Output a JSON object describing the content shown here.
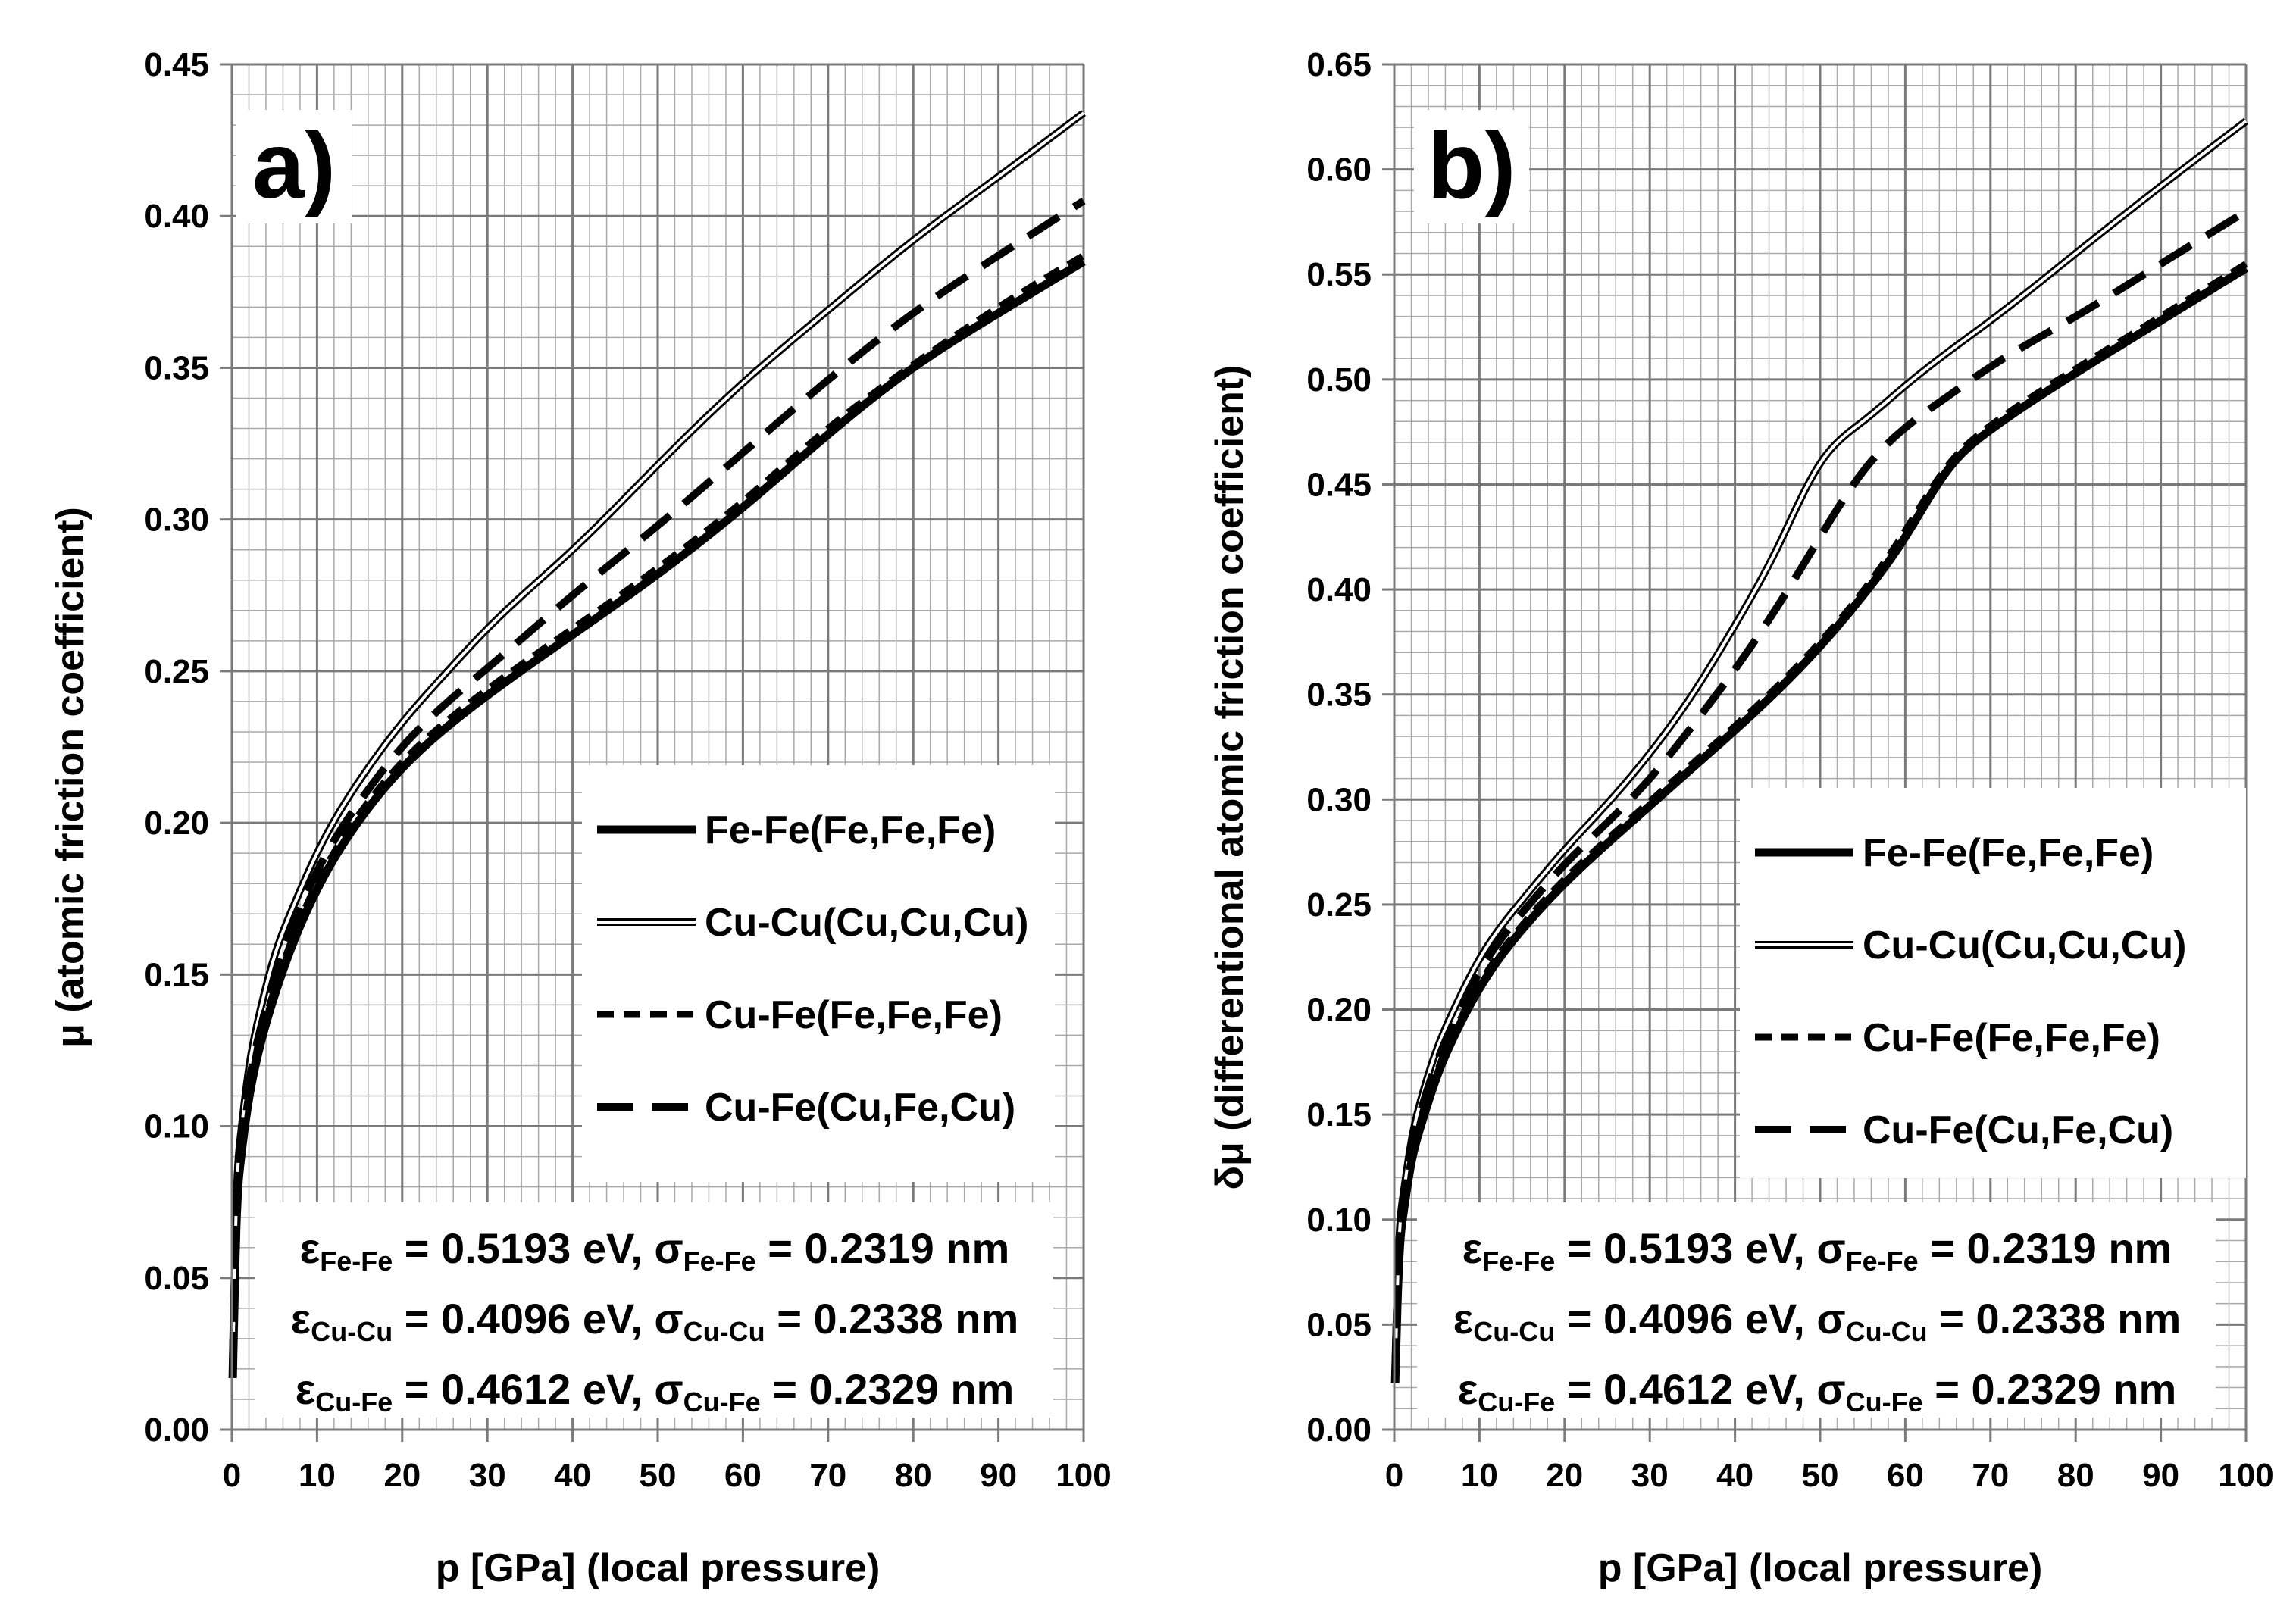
{
  "figure": {
    "params": [
      {
        "eps_sub": "Fe-Fe",
        "eps_val": " = 0.5193 eV, ",
        "sig_sub": "Fe-Fe",
        "sig_val": " = 0.2319 nm"
      },
      {
        "eps_sub": "Cu-Cu",
        "eps_val": " = 0.4096 eV, ",
        "sig_sub": "Cu-Cu",
        "sig_val": " = 0.2338 nm"
      },
      {
        "eps_sub": "Cu-Fe",
        "eps_val": " = 0.4612 eV, ",
        "sig_sub": "Cu-Fe",
        "sig_val": " = 0.2329 nm"
      }
    ],
    "symbols": {
      "epsilon": "ε",
      "sigma": "σ"
    }
  },
  "chart_data": [
    {
      "type": "line",
      "panel_label": "a)",
      "xlabel": "p [GPa]   (local pressure)",
      "ylabel_symbol": "μ",
      "ylabel_text": "(atomic friction coefficient)",
      "xlim": [
        0,
        100
      ],
      "ylim": [
        0,
        0.45
      ],
      "xticks": [
        "0",
        "10",
        "20",
        "30",
        "40",
        "50",
        "60",
        "70",
        "80",
        "90",
        "100"
      ],
      "yticks": [
        "0.00",
        "0.05",
        "0.10",
        "0.15",
        "0.20",
        "0.25",
        "0.30",
        "0.35",
        "0.40",
        "0.45"
      ],
      "grid": true,
      "legend_position": "right",
      "series": [
        {
          "name": "Fe-Fe(Fe,Fe,Fe)",
          "style": "solid-thick",
          "x": [
            0.1,
            0.5,
            1,
            2,
            3,
            5,
            7,
            10,
            15,
            20,
            25,
            30,
            40,
            50,
            60,
            70,
            80,
            90,
            100
          ],
          "y": [
            0.017,
            0.065,
            0.088,
            0.109,
            0.123,
            0.143,
            0.159,
            0.178,
            0.201,
            0.218,
            0.231,
            0.242,
            0.262,
            0.282,
            0.304,
            0.328,
            0.35,
            0.368,
            0.385
          ]
        },
        {
          "name": "Cu-Cu(Cu,Cu,Cu)",
          "style": "double",
          "x": [
            0.1,
            0.5,
            1,
            2,
            3,
            5,
            7,
            10,
            15,
            20,
            25,
            30,
            40,
            50,
            60,
            70,
            80,
            90,
            100
          ],
          "y": [
            0.02,
            0.072,
            0.096,
            0.119,
            0.134,
            0.156,
            0.171,
            0.19,
            0.214,
            0.233,
            0.249,
            0.264,
            0.29,
            0.318,
            0.345,
            0.369,
            0.392,
            0.413,
            0.434
          ]
        },
        {
          "name": "Cu-Fe(Fe,Fe,Fe)",
          "style": "dash-short",
          "x": [
            0.1,
            0.5,
            1,
            2,
            3,
            5,
            7,
            10,
            15,
            20,
            25,
            30,
            40,
            50,
            60,
            70,
            80,
            90,
            100
          ],
          "y": [
            0.018,
            0.067,
            0.09,
            0.111,
            0.125,
            0.145,
            0.161,
            0.18,
            0.203,
            0.22,
            0.233,
            0.244,
            0.264,
            0.284,
            0.306,
            0.33,
            0.351,
            0.37,
            0.387
          ]
        },
        {
          "name": "Cu-Fe(Cu,Fe,Cu)",
          "style": "dash-long",
          "x": [
            0.1,
            0.5,
            1,
            2,
            3,
            5,
            7,
            10,
            15,
            20,
            25,
            30,
            40,
            50,
            60,
            70,
            80,
            90,
            100
          ],
          "y": [
            0.019,
            0.069,
            0.092,
            0.114,
            0.128,
            0.149,
            0.165,
            0.184,
            0.207,
            0.225,
            0.239,
            0.251,
            0.275,
            0.298,
            0.322,
            0.346,
            0.368,
            0.387,
            0.405
          ]
        }
      ]
    },
    {
      "type": "line",
      "panel_label": "b)",
      "xlabel": "p [GPa]   (local pressure)",
      "ylabel_symbol": "δμ",
      "ylabel_text": "(differentional atomic friction coefficient)",
      "xlim": [
        0,
        100
      ],
      "ylim": [
        0,
        0.65
      ],
      "xticks": [
        "0",
        "10",
        "20",
        "30",
        "40",
        "50",
        "60",
        "70",
        "80",
        "90",
        "100"
      ],
      "yticks": [
        "0.00",
        "0.05",
        "0.10",
        "0.15",
        "0.20",
        "0.25",
        "0.30",
        "0.35",
        "0.40",
        "0.45",
        "0.50",
        "0.55",
        "0.60",
        "0.65"
      ],
      "grid": true,
      "legend_position": "right",
      "series": [
        {
          "name": "Fe-Fe(Fe,Fe,Fe)",
          "style": "solid-thick",
          "x": [
            0.1,
            0.5,
            1,
            2,
            3,
            5,
            7,
            10,
            15,
            20,
            25,
            30,
            35,
            40,
            45,
            50,
            55,
            60,
            65,
            70,
            80,
            90,
            100
          ],
          "y": [
            0.022,
            0.075,
            0.101,
            0.127,
            0.143,
            0.168,
            0.187,
            0.21,
            0.238,
            0.26,
            0.279,
            0.297,
            0.315,
            0.333,
            0.352,
            0.373,
            0.397,
            0.425,
            0.457,
            0.476,
            0.503,
            0.528,
            0.553
          ]
        },
        {
          "name": "Cu-Cu(Cu,Cu,Cu)",
          "style": "double",
          "x": [
            0.1,
            0.5,
            1,
            2,
            3,
            5,
            7,
            10,
            15,
            20,
            25,
            30,
            35,
            40,
            45,
            50,
            55,
            60,
            65,
            70,
            80,
            90,
            100
          ],
          "y": [
            0.025,
            0.083,
            0.11,
            0.137,
            0.155,
            0.181,
            0.2,
            0.224,
            0.252,
            0.276,
            0.298,
            0.322,
            0.35,
            0.383,
            0.42,
            0.46,
            0.48,
            0.497,
            0.513,
            0.528,
            0.56,
            0.592,
            0.623
          ]
        },
        {
          "name": "Cu-Fe(Fe,Fe,Fe)",
          "style": "dash-short",
          "x": [
            0.1,
            0.5,
            1,
            2,
            3,
            5,
            7,
            10,
            15,
            20,
            25,
            30,
            35,
            40,
            45,
            50,
            55,
            60,
            65,
            70,
            80,
            90,
            100
          ],
          "y": [
            0.023,
            0.077,
            0.103,
            0.129,
            0.145,
            0.17,
            0.189,
            0.212,
            0.24,
            0.262,
            0.281,
            0.299,
            0.317,
            0.335,
            0.354,
            0.375,
            0.399,
            0.428,
            0.459,
            0.478,
            0.505,
            0.53,
            0.555
          ]
        },
        {
          "name": "Cu-Fe(Cu,Fe,Cu)",
          "style": "dash-long",
          "x": [
            0.1,
            0.5,
            1,
            2,
            3,
            5,
            7,
            10,
            15,
            20,
            25,
            30,
            35,
            40,
            45,
            50,
            55,
            60,
            65,
            70,
            80,
            90,
            100
          ],
          "y": [
            0.024,
            0.08,
            0.106,
            0.133,
            0.15,
            0.175,
            0.194,
            0.218,
            0.246,
            0.269,
            0.289,
            0.31,
            0.335,
            0.362,
            0.392,
            0.425,
            0.456,
            0.477,
            0.492,
            0.506,
            0.53,
            0.555,
            0.58
          ]
        }
      ]
    }
  ]
}
